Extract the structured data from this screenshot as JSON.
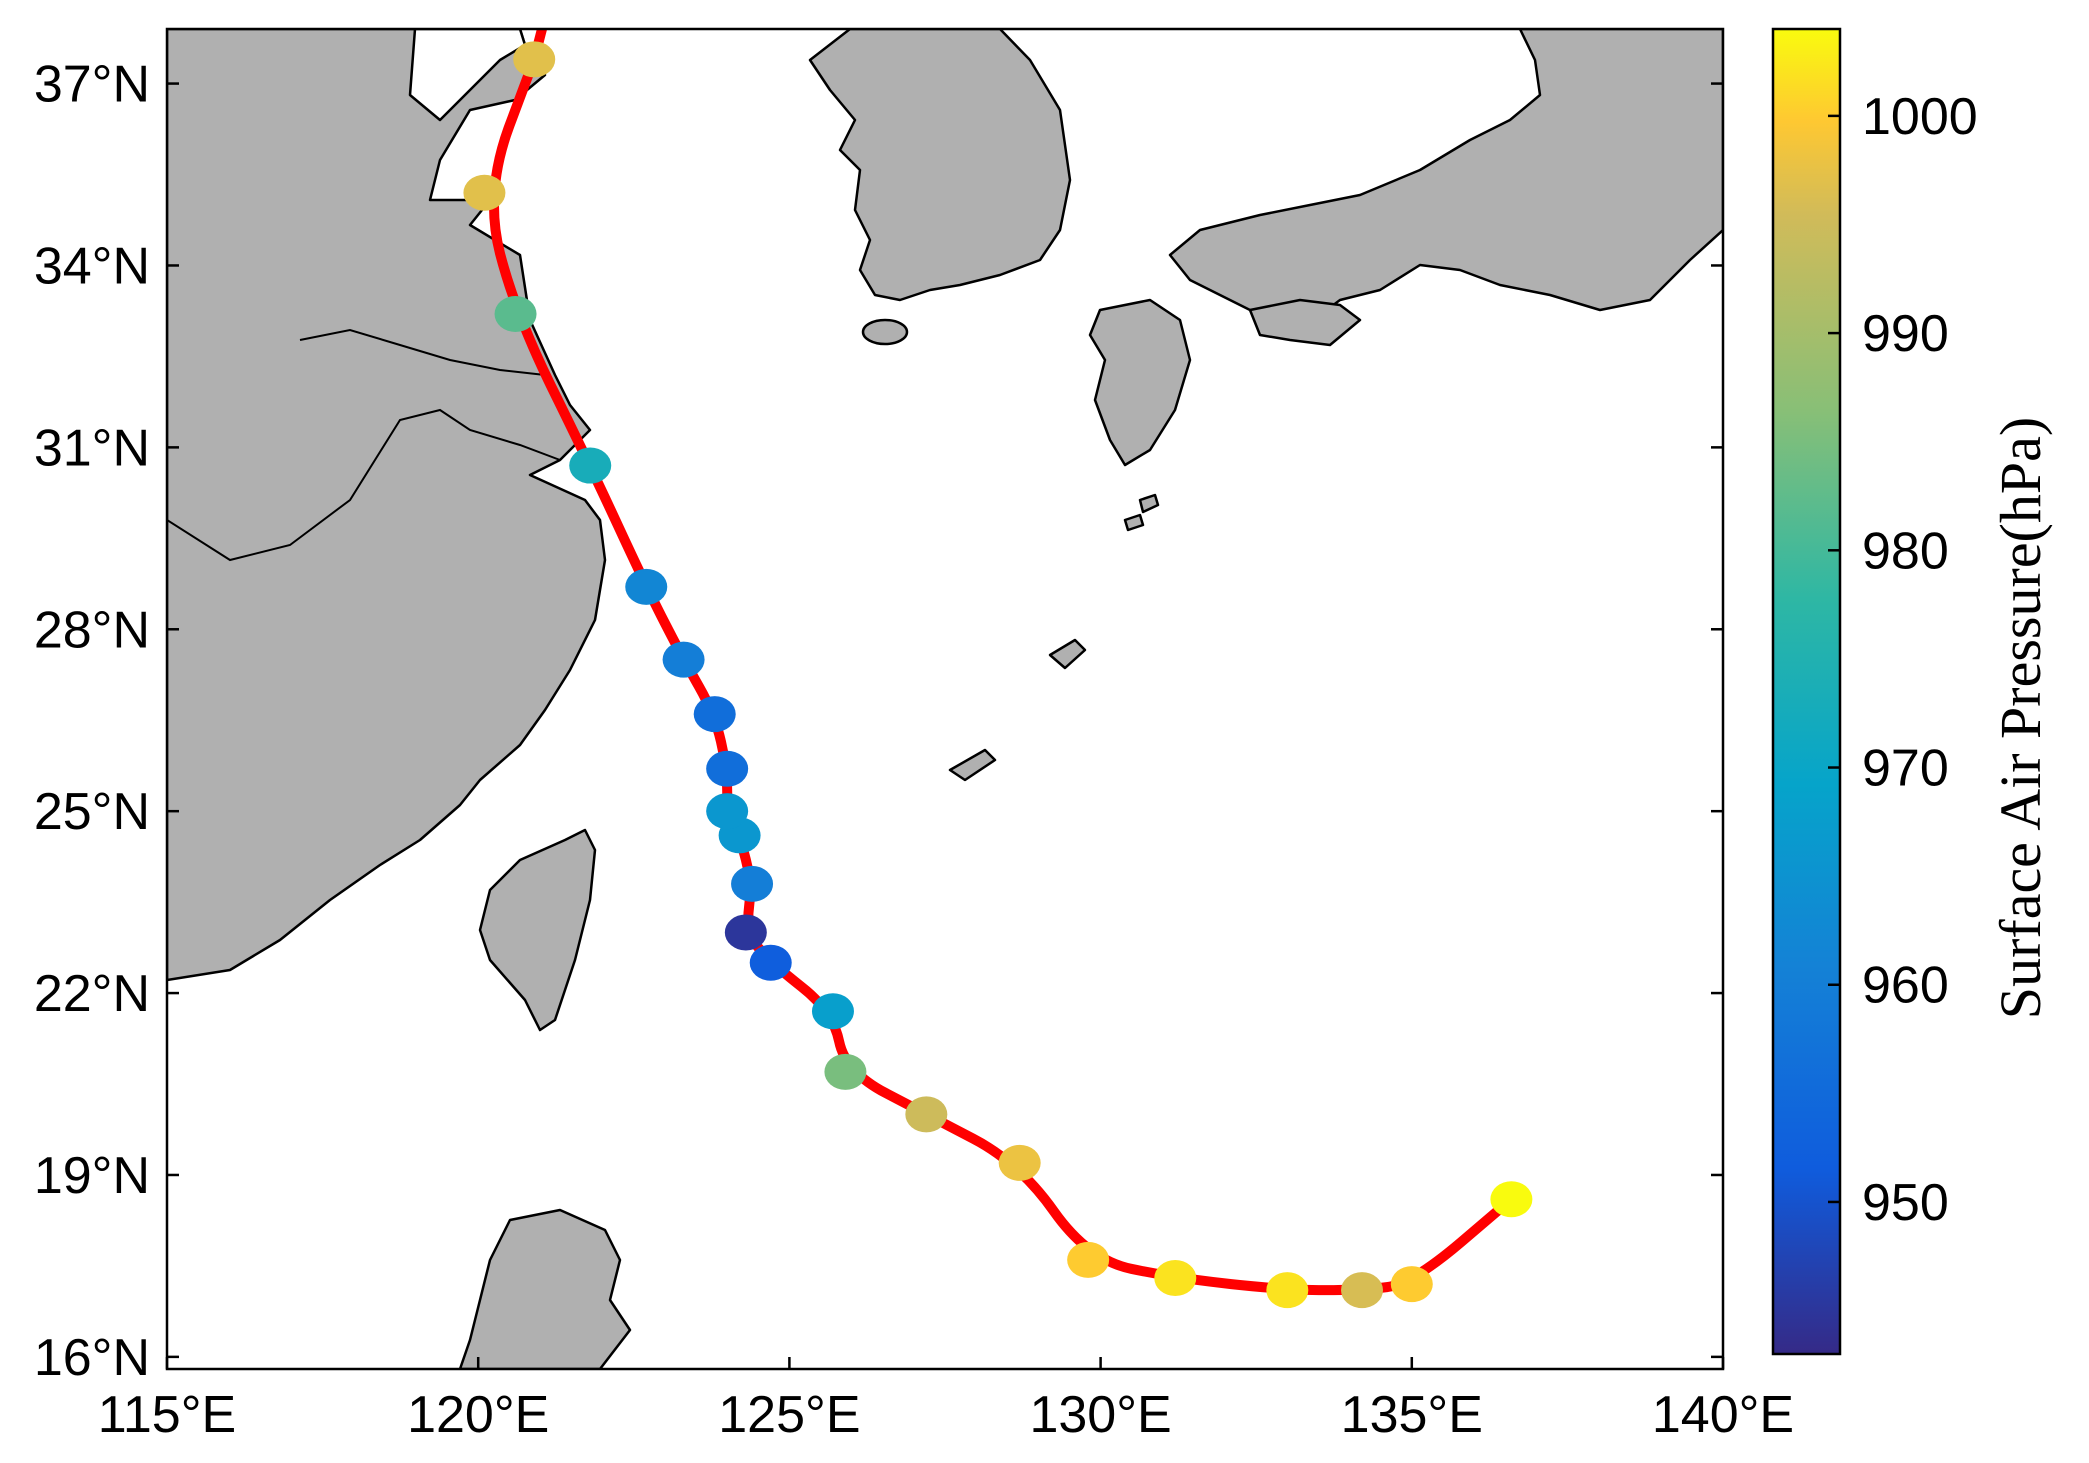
{
  "map": {
    "lon_ticks": [
      "115°E",
      "120°E",
      "125°E",
      "130°E",
      "135°E",
      "140°E"
    ],
    "lat_ticks": [
      "16°N",
      "19°N",
      "22°N",
      "25°N",
      "28°N",
      "31°N",
      "34°N",
      "37°N"
    ],
    "extent": {
      "lon": [
        115,
        140
      ],
      "lat": [
        15.8,
        37.9
      ]
    },
    "land_color": "#b0b0b0",
    "coast_color": "#000000",
    "track_color": "#ff0000"
  },
  "colorbar": {
    "label": "Surface Air Pressure(hPa)",
    "ticks": [
      "950",
      "960",
      "970",
      "980",
      "990",
      "1000"
    ],
    "range": [
      943,
      1004
    ],
    "colormap": "parula"
  },
  "track": [
    {
      "lon": 136.6,
      "lat": 18.6,
      "pressure": 1004
    },
    {
      "lon": 135.0,
      "lat": 17.2,
      "pressure": 1000
    },
    {
      "lon": 134.2,
      "lat": 17.1,
      "pressure": 996
    },
    {
      "lon": 133.0,
      "lat": 17.1,
      "pressure": 1002
    },
    {
      "lon": 131.2,
      "lat": 17.3,
      "pressure": 1002
    },
    {
      "lon": 129.8,
      "lat": 17.6,
      "pressure": 1000
    },
    {
      "lon": 128.7,
      "lat": 19.2,
      "pressure": 998
    },
    {
      "lon": 127.2,
      "lat": 20.0,
      "pressure": 995
    },
    {
      "lon": 125.9,
      "lat": 20.7,
      "pressure": 985
    },
    {
      "lon": 125.7,
      "lat": 21.7,
      "pressure": 968
    },
    {
      "lon": 124.7,
      "lat": 22.5,
      "pressure": 952
    },
    {
      "lon": 124.3,
      "lat": 23.0,
      "pressure": 945
    },
    {
      "lon": 124.4,
      "lat": 23.8,
      "pressure": 960
    },
    {
      "lon": 124.2,
      "lat": 24.6,
      "pressure": 966
    },
    {
      "lon": 124.0,
      "lat": 25.0,
      "pressure": 966
    },
    {
      "lon": 124.0,
      "lat": 25.7,
      "pressure": 956
    },
    {
      "lon": 123.8,
      "lat": 26.6,
      "pressure": 956
    },
    {
      "lon": 123.3,
      "lat": 27.5,
      "pressure": 960
    },
    {
      "lon": 122.7,
      "lat": 28.7,
      "pressure": 962
    },
    {
      "lon": 121.8,
      "lat": 30.7,
      "pressure": 973
    },
    {
      "lon": 120.6,
      "lat": 33.2,
      "pressure": 982
    },
    {
      "lon": 120.1,
      "lat": 35.2,
      "pressure": 997
    },
    {
      "lon": 120.9,
      "lat": 37.4,
      "pressure": 997
    }
  ]
}
